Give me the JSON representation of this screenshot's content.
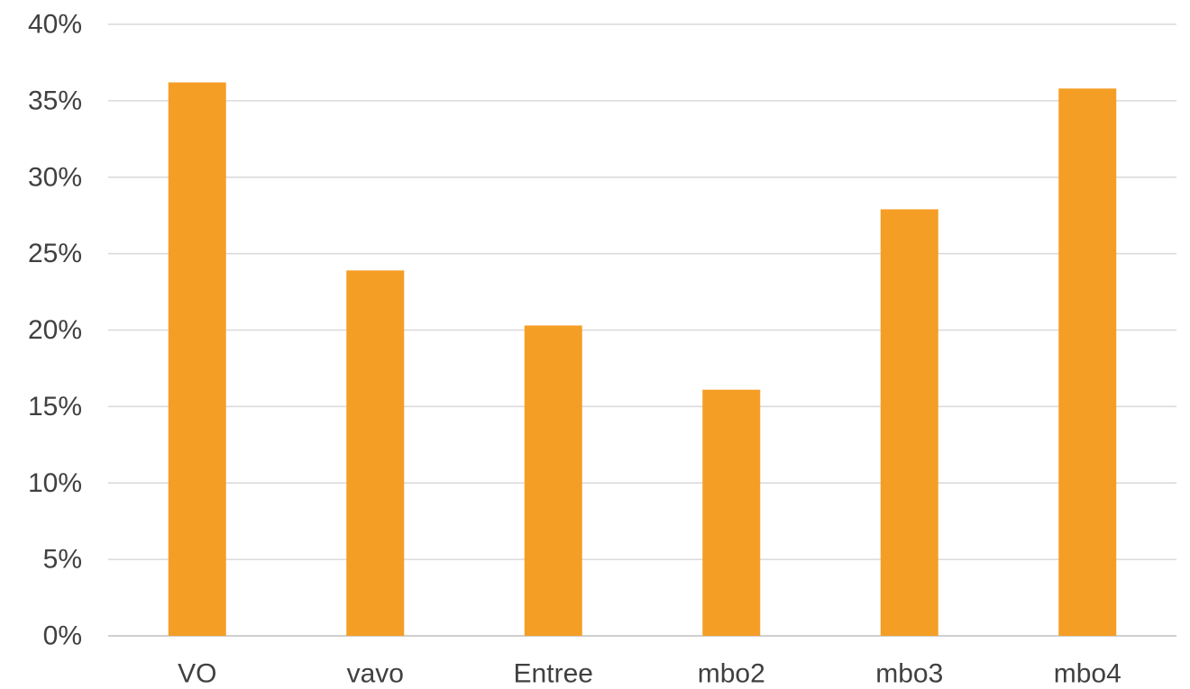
{
  "chart_data": {
    "type": "bar",
    "categories": [
      "VO",
      "vavo",
      "Entree",
      "mbo2",
      "mbo3",
      "mbo4"
    ],
    "values": [
      36.2,
      23.9,
      20.3,
      16.1,
      27.9,
      35.8
    ],
    "value_unit": "%",
    "ylim": [
      0,
      40
    ],
    "yticks": [
      0,
      5,
      10,
      15,
      20,
      25,
      30,
      35,
      40
    ],
    "ytick_labels": [
      "0%",
      "5%",
      "10%",
      "15%",
      "20%",
      "25%",
      "30%",
      "35%",
      "40%"
    ],
    "grid": true,
    "legend": "none",
    "bar_color": "#F59E25"
  }
}
